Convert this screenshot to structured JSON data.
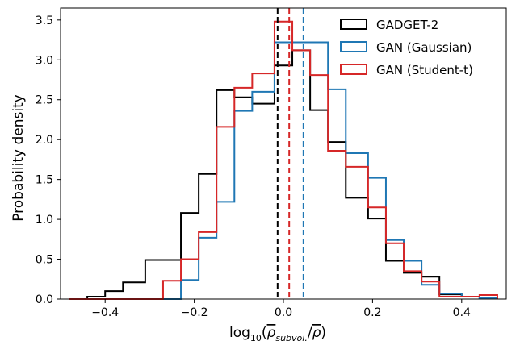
{
  "chart_data": {
    "type": "histogram",
    "xlabel": "log10(ρ̄subvol./ρ̄)",
    "xlabel_parts": {
      "base": "log",
      "subscript": "10",
      "open": "(",
      "rho_sub": "ρ",
      "sub_text": "subvol.",
      "slash": "/",
      "rho": "ρ",
      "close": ")"
    },
    "ylabel": "Probability density",
    "xlim": [
      -0.5,
      0.5
    ],
    "ylim": [
      0,
      3.65
    ],
    "xticks": [
      -0.4,
      -0.2,
      0.0,
      0.2,
      0.4
    ],
    "xtick_labels": [
      "−0.4",
      "−0.2",
      "0.0",
      "0.2",
      "0.4"
    ],
    "yticks": [
      0.0,
      0.5,
      1.0,
      1.5,
      2.0,
      2.5,
      3.0,
      3.5
    ],
    "ytick_labels": [
      "0.0",
      "0.5",
      "1.0",
      "1.5",
      "2.0",
      "2.5",
      "3.0",
      "3.5"
    ],
    "legend_position": "top-right",
    "series": [
      {
        "name": "GADGET-2",
        "color": "#000000",
        "edges": [
          -0.48,
          -0.44,
          -0.4,
          -0.36,
          -0.31,
          -0.27,
          -0.23,
          -0.19,
          -0.15,
          -0.11,
          -0.07,
          -0.02,
          0.02,
          0.06,
          0.1,
          0.14,
          0.19,
          0.23,
          0.27,
          0.31,
          0.35,
          0.4,
          0.44,
          0.48
        ],
        "values": [
          0.0,
          0.03,
          0.1,
          0.21,
          0.49,
          0.49,
          1.08,
          1.57,
          2.62,
          2.53,
          2.45,
          2.93,
          3.12,
          2.37,
          1.97,
          1.27,
          1.01,
          0.48,
          0.33,
          0.28,
          0.06,
          0.03,
          0.01
        ],
        "mean": -0.013
      },
      {
        "name": "GAN (Gaussian)",
        "color": "#1f77b4",
        "edges": [
          -0.48,
          -0.44,
          -0.4,
          -0.36,
          -0.31,
          -0.27,
          -0.23,
          -0.19,
          -0.15,
          -0.11,
          -0.07,
          -0.02,
          0.02,
          0.06,
          0.1,
          0.14,
          0.19,
          0.23,
          0.27,
          0.31,
          0.35,
          0.4,
          0.44,
          0.48
        ],
        "values": [
          0.0,
          0.0,
          0.0,
          0.0,
          0.0,
          0.0,
          0.24,
          0.77,
          1.22,
          2.36,
          2.6,
          3.22,
          3.22,
          3.22,
          2.63,
          1.83,
          1.52,
          0.74,
          0.48,
          0.18,
          0.07,
          0.03,
          0.01
        ],
        "mean": 0.045
      },
      {
        "name": "GAN (Student-t)",
        "color": "#d62728",
        "edges": [
          -0.48,
          -0.44,
          -0.4,
          -0.36,
          -0.31,
          -0.27,
          -0.23,
          -0.19,
          -0.15,
          -0.11,
          -0.07,
          -0.02,
          0.02,
          0.06,
          0.1,
          0.14,
          0.19,
          0.23,
          0.27,
          0.31,
          0.35,
          0.4,
          0.44,
          0.48
        ],
        "values": [
          0.0,
          0.0,
          0.0,
          0.0,
          0.0,
          0.23,
          0.5,
          0.84,
          2.16,
          2.65,
          2.83,
          3.48,
          3.12,
          2.81,
          1.86,
          1.66,
          1.15,
          0.7,
          0.35,
          0.22,
          0.03,
          0.03,
          0.05
        ],
        "mean": 0.013
      }
    ]
  }
}
